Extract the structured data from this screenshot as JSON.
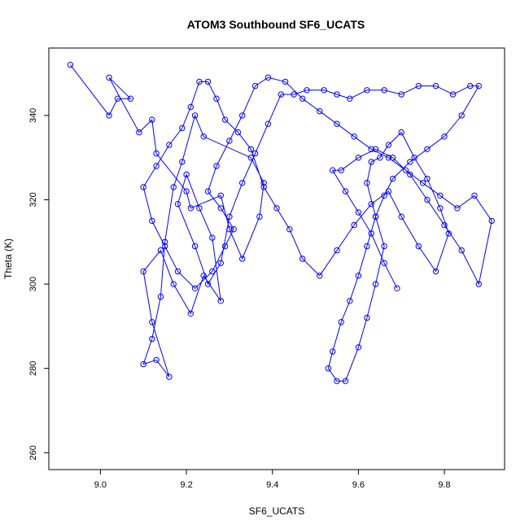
{
  "chart_data": {
    "type": "scatter",
    "title": "ATOM3 Southbound SF6_UCATS",
    "xlabel": "SF6_UCATS",
    "ylabel": "Theta (K)",
    "xlim": [
      8.88,
      9.94
    ],
    "ylim": [
      256,
      356
    ],
    "xticks": [
      9.0,
      9.2,
      9.4,
      9.6,
      9.8
    ],
    "xtick_labels": [
      "9.0",
      "9.2",
      "9.4",
      "9.6",
      "9.8"
    ],
    "yticks": [
      260,
      280,
      300,
      320,
      340
    ],
    "ytick_labels": [
      "260",
      "280",
      "300",
      "320",
      "340"
    ],
    "grid": false,
    "series": [
      {
        "color": "#0000ff",
        "marker": "open-circle",
        "connected": true,
        "x": [
          8.93,
          9.02,
          9.04,
          9.07,
          9.02,
          9.09,
          9.12,
          9.13,
          9.2,
          9.21,
          9.28,
          9.3,
          9.33,
          9.37,
          9.38,
          9.35,
          9.24,
          9.22,
          9.19,
          9.17,
          9.15,
          9.14,
          9.12,
          9.1,
          9.13,
          9.16,
          9.12,
          9.1,
          9.14,
          9.17,
          9.21,
          9.24,
          9.28,
          9.26,
          9.23,
          9.2,
          9.18,
          9.22,
          9.25,
          9.28,
          9.3,
          9.33,
          9.36,
          9.39,
          9.42,
          9.45,
          9.48,
          9.52,
          9.55,
          9.58,
          9.62,
          9.66,
          9.7,
          9.74,
          9.78,
          9.82,
          9.86,
          9.88,
          9.84,
          9.8,
          9.76,
          9.72,
          9.68,
          9.66,
          9.64,
          9.62,
          9.6,
          9.58,
          9.56,
          9.54,
          9.53,
          9.55,
          9.57,
          9.6,
          9.62,
          9.64,
          9.66,
          9.64,
          9.62,
          9.63,
          9.65,
          9.67,
          9.7,
          9.73,
          9.76,
          9.79,
          9.81,
          9.78,
          9.74,
          9.7,
          9.67,
          9.63,
          9.59,
          9.55,
          9.51,
          9.47,
          9.44,
          9.41,
          9.38,
          9.35,
          9.32,
          9.29,
          9.27,
          9.25,
          9.23,
          9.21,
          9.19,
          9.16,
          9.13,
          9.1,
          9.12,
          9.15,
          9.18,
          9.22,
          9.26,
          9.29,
          9.31,
          9.28,
          9.25,
          9.27,
          9.3,
          9.33,
          9.36,
          9.39,
          9.43,
          9.47,
          9.51,
          9.55,
          9.59,
          9.63,
          9.67,
          9.71,
          9.75,
          9.79,
          9.83,
          9.87,
          9.91,
          9.88,
          9.84,
          9.8,
          9.76,
          9.72,
          9.68,
          9.64,
          9.6,
          9.56,
          9.54,
          9.57,
          9.6,
          9.63,
          9.66,
          9.69
        ],
        "y": [
          352,
          340,
          344,
          344,
          349,
          336,
          339,
          331,
          322,
          318,
          321,
          313,
          306,
          316,
          324,
          330,
          335,
          340,
          329,
          323,
          310,
          297,
          287,
          281,
          282,
          278,
          291,
          303,
          308,
          300,
          293,
          302,
          296,
          311,
          318,
          326,
          319,
          309,
          300,
          305,
          316,
          324,
          331,
          338,
          345,
          345,
          346,
          346,
          345,
          344,
          346,
          346,
          345,
          347,
          347,
          345,
          347,
          347,
          340,
          335,
          332,
          329,
          325,
          321,
          316,
          309,
          302,
          296,
          291,
          284,
          280,
          277,
          277,
          285,
          292,
          300,
          309,
          316,
          324,
          329,
          330,
          333,
          336,
          330,
          325,
          318,
          312,
          303,
          309,
          316,
          322,
          319,
          314,
          308,
          302,
          306,
          313,
          318,
          323,
          332,
          336,
          339,
          344,
          348,
          348,
          342,
          337,
          333,
          328,
          323,
          315,
          309,
          303,
          299,
          303,
          309,
          313,
          318,
          322,
          328,
          334,
          340,
          347,
          349,
          348,
          344,
          341,
          338,
          335,
          332,
          330,
          327,
          324,
          321,
          318,
          321,
          315,
          300,
          308,
          314,
          320,
          326,
          330,
          332,
          330,
          327,
          327,
          322,
          317,
          312,
          305,
          299
        ]
      }
    ]
  }
}
